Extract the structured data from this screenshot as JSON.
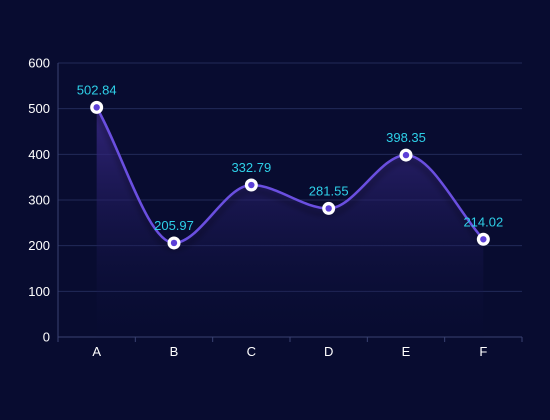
{
  "chart_data": {
    "type": "line",
    "smooth": true,
    "area_fill": true,
    "categories": [
      "A",
      "B",
      "C",
      "D",
      "E",
      "F"
    ],
    "series": [
      {
        "values": [
          502.84,
          205.97,
          332.79,
          281.55,
          398.35,
          214.02
        ]
      }
    ],
    "data_labels": [
      "502.84",
      "205.97",
      "332.79",
      "281.55",
      "398.35",
      "214.02"
    ],
    "title": "",
    "xlabel": "",
    "ylabel": "",
    "ylim": [
      0,
      600
    ],
    "yticks": [
      0,
      100,
      200,
      300,
      400,
      500,
      600
    ],
    "grid": true,
    "legend": "none"
  },
  "colors": {
    "background": "#080c30",
    "line": "#6b4fe0",
    "marker_fill": "#ffffff",
    "marker_center": "#5b3fd6",
    "data_label": "#2ed0e8",
    "axis_text": "#ffffff",
    "grid": "#222a58",
    "axis_line": "#3a4272",
    "area_top": "#3b2a8a",
    "area_bottom": "#0b0f3a"
  }
}
